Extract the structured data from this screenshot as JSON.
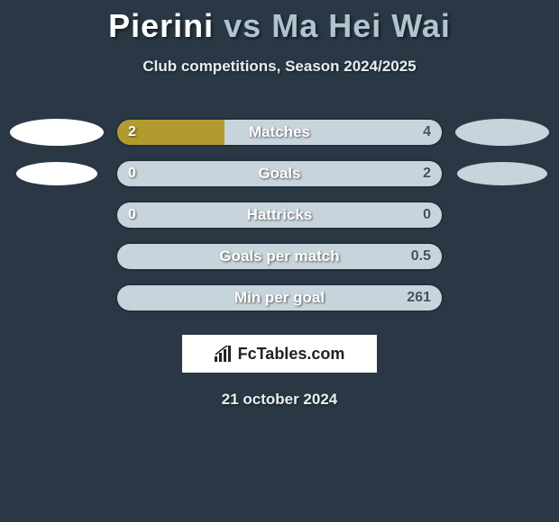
{
  "header": {
    "player1": "Pierini",
    "vs": "vs",
    "player2": "Ma Hei Wai",
    "subtitle": "Club competitions, Season 2024/2025"
  },
  "colors": {
    "left_fill": "#b29a2f",
    "right_fill": "#c8d4db",
    "background": "#2a3845",
    "oval_left": "#ffffff",
    "oval_right": "#c8d4db"
  },
  "rows": [
    {
      "label": "Matches",
      "left": "2",
      "right": "4",
      "left_pct": 33,
      "show_ovals": true
    },
    {
      "label": "Goals",
      "left": "0",
      "right": "2",
      "left_pct": 0,
      "show_ovals": true
    },
    {
      "label": "Hattricks",
      "left": "0",
      "right": "0",
      "left_pct": 0,
      "show_ovals": false
    },
    {
      "label": "Goals per match",
      "left": "",
      "right": "0.5",
      "left_pct": 0,
      "show_ovals": false
    },
    {
      "label": "Min per goal",
      "left": "",
      "right": "261",
      "left_pct": 0,
      "show_ovals": false
    }
  ],
  "brand": "FcTables.com",
  "date": "21 october 2024"
}
